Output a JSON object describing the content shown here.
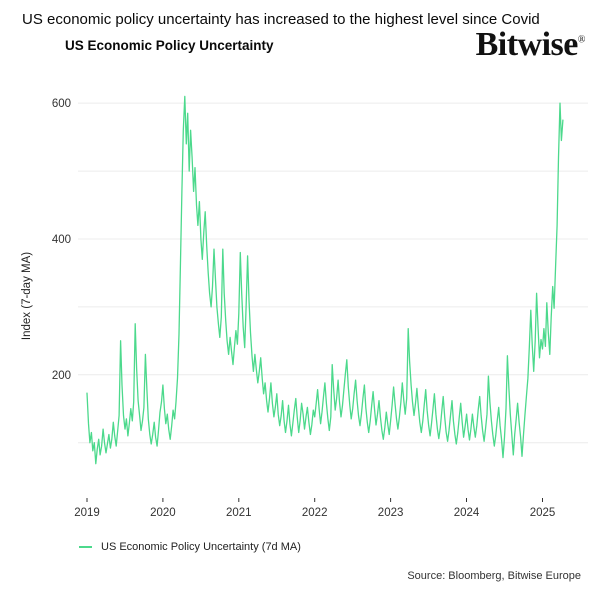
{
  "header": {
    "title": "US economic policy uncertainty has increased to the highest level since Covid",
    "chart_title": "US Economic Policy Uncertainty",
    "logo_text": "Bitwise",
    "logo_mark": "®"
  },
  "legend": {
    "label": "US Economic Policy Uncertainty (7d MA)"
  },
  "source": {
    "text": "Source: Bloomberg, Bitwise Europe"
  },
  "colors": {
    "line": "#4cd98c",
    "grid": "#ececec",
    "tick": "#333333",
    "axis_text": "#333333",
    "text": "#1a1a1a"
  },
  "chart_data": {
    "type": "line",
    "title": "US Economic Policy Uncertainty",
    "xlabel": "",
    "ylabel": "Index (7-day MA)",
    "legend_position": "bottom-left",
    "grid": true,
    "x_ticks": [
      2019,
      2020,
      2021,
      2022,
      2023,
      2024,
      2025
    ],
    "y_ticks": [
      200,
      400,
      600
    ],
    "grid_y_values": [
      100,
      200,
      300,
      400,
      500,
      600
    ],
    "x_range": [
      2019,
      2025.6
    ],
    "y_range": [
      20,
      612
    ],
    "series": [
      {
        "name": "US Economic Policy Uncertainty (7d MA)",
        "x_start": 2019.0,
        "x_step": 0.019231,
        "values": [
          173,
          128,
          100,
          115,
          88,
          100,
          69,
          90,
          105,
          82,
          95,
          120,
          100,
          85,
          98,
          112,
          92,
          105,
          130,
          110,
          95,
          118,
          140,
          250,
          185,
          140,
          120,
          135,
          110,
          128,
          150,
          132,
          160,
          275,
          210,
          162,
          140,
          118,
          132,
          152,
          230,
          178,
          135,
          112,
          98,
          112,
          130,
          108,
          95,
          118,
          145,
          160,
          185,
          150,
          128,
          142,
          120,
          105,
          125,
          148,
          135,
          160,
          195,
          260,
          360,
          470,
          560,
          610,
          540,
          585,
          500,
          560,
          520,
          470,
          505,
          450,
          420,
          455,
          400,
          370,
          410,
          440,
          390,
          350,
          320,
          300,
          330,
          385,
          340,
          300,
          275,
          255,
          285,
          385,
          320,
          280,
          250,
          230,
          255,
          235,
          215,
          240,
          265,
          245,
          290,
          380,
          320,
          270,
          240,
          300,
          375,
          310,
          262,
          228,
          205,
          230,
          208,
          188,
          205,
          225,
          195,
          172,
          188,
          162,
          145,
          165,
          188,
          158,
          138,
          152,
          172,
          142,
          125,
          140,
          162,
          132,
          115,
          132,
          155,
          128,
          110,
          128,
          148,
          165,
          138,
          115,
          132,
          158,
          142,
          120,
          138,
          152,
          130,
          112,
          126,
          148,
          138,
          158,
          178,
          150,
          128,
          145,
          168,
          188,
          158,
          135,
          118,
          138,
          215,
          178,
          148,
          165,
          192,
          160,
          138,
          155,
          178,
          202,
          222,
          182,
          155,
          135,
          150,
          172,
          192,
          162,
          140,
          125,
          142,
          165,
          185,
          152,
          130,
          115,
          132,
          155,
          175,
          148,
          126,
          142,
          162,
          138,
          118,
          105,
          122,
          145,
          128,
          112,
          132,
          155,
          182,
          158,
          135,
          120,
          138,
          160,
          188,
          162,
          142,
          165,
          268,
          220,
          185,
          160,
          140,
          158,
          180,
          152,
          130,
          115,
          132,
          155,
          178,
          148,
          126,
          110,
          128,
          150,
          172,
          142,
          120,
          106,
          122,
          145,
          168,
          138,
          116,
          102,
          118,
          140,
          162,
          132,
          112,
          98,
          115,
          138,
          158,
          130,
          108,
          124,
          142,
          120,
          104,
          120,
          142,
          124,
          108,
          125,
          148,
          168,
          140,
          118,
          102,
          120,
          142,
          198,
          160,
          132,
          112,
          95,
          110,
          132,
          152,
          125,
          104,
          78,
          108,
          150,
          228,
          180,
          142,
          112,
          82,
          112,
          135,
          158,
          130,
          108,
          80,
          112,
          140,
          168,
          195,
          240,
          295,
          245,
          205,
          250,
          320,
          268,
          225,
          252,
          238,
          268,
          242,
          306,
          262,
          230,
          285,
          330,
          298,
          360,
          420,
          520,
          600,
          545,
          575
        ]
      }
    ]
  }
}
